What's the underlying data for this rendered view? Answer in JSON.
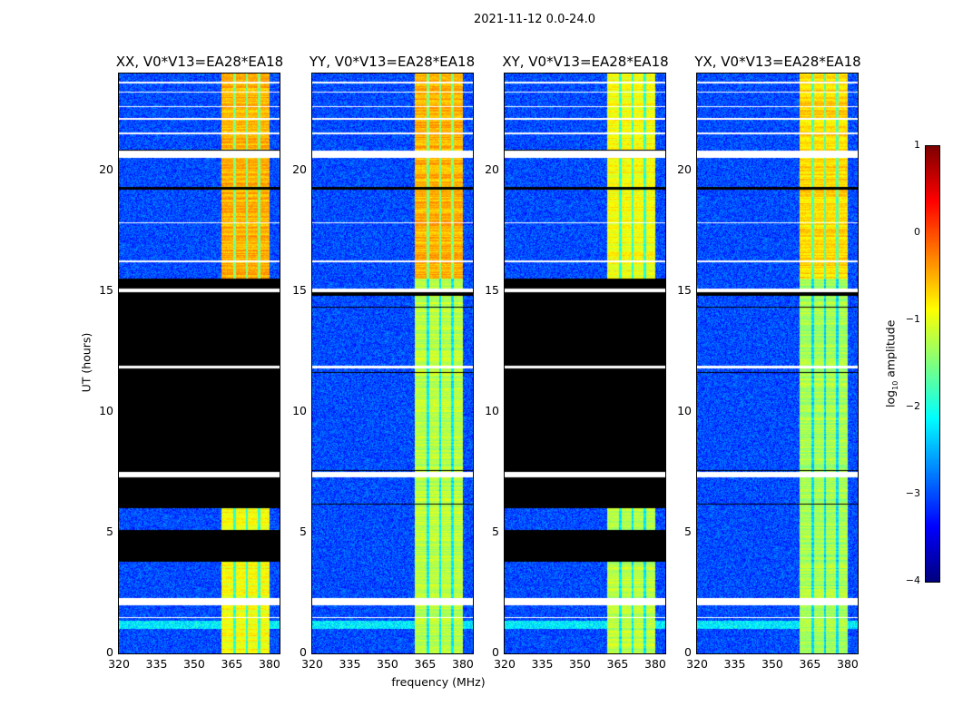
{
  "figure_title": "2021-11-12 0.0-24.0",
  "chart_data": {
    "type": "heatmap",
    "title": "2021-11-12 0.0-24.0",
    "xlabel": "frequency (MHz)",
    "ylabel": "UT (hours)",
    "xlim": [
      320,
      384
    ],
    "ylim": [
      0,
      24
    ],
    "xticks": [
      "320",
      "335",
      "350",
      "365",
      "380"
    ],
    "xtick_values": [
      320,
      335,
      350,
      365,
      380
    ],
    "yticks": [
      "0",
      "5",
      "10",
      "15",
      "20"
    ],
    "ytick_values": [
      0,
      5,
      10,
      15,
      20
    ],
    "colorbar": {
      "label_main": "log",
      "label_sub": "10",
      "label_rest": " amplitude",
      "range": [
        -4,
        1
      ],
      "ticks": [
        "1",
        "0",
        "−1",
        "−2",
        "−3",
        "−4"
      ],
      "tick_values": [
        1,
        0,
        -1,
        -2,
        -3,
        -4
      ],
      "colormap": "jet"
    },
    "signal_band_mhz": [
      361,
      380
    ],
    "channel_edges_mhz": [
      366,
      371,
      376
    ],
    "background_level": -3.0,
    "panels": [
      {
        "title": "XX, V0*V13=EA28*EA18",
        "flagged_hours": [
          [
            3.8,
            5.1
          ],
          [
            6.0,
            15.5
          ],
          [
            20.8,
            20.85
          ],
          [
            19.2,
            19.3
          ]
        ],
        "band_level_upper": -0.5,
        "band_level_lower": -0.9
      },
      {
        "title": "YY, V0*V13=EA28*EA18",
        "flagged_hours": [
          [
            11.6,
            11.65
          ],
          [
            14.3,
            14.35
          ],
          [
            14.8,
            14.95
          ],
          [
            7.55,
            7.6
          ],
          [
            6.15,
            6.2
          ],
          [
            19.2,
            19.3
          ]
        ],
        "band_level_upper": -0.5,
        "band_level_lower": -1.2
      },
      {
        "title": "XY, V0*V13=EA28*EA18",
        "flagged_hours": [
          [
            3.8,
            5.1
          ],
          [
            6.0,
            15.5
          ],
          [
            20.8,
            20.85
          ],
          [
            19.2,
            19.3
          ]
        ],
        "band_level_upper": -0.9,
        "band_level_lower": -1.2
      },
      {
        "title": "YX, V0*V13=EA28*EA18",
        "flagged_hours": [
          [
            11.6,
            11.65
          ],
          [
            14.3,
            14.35
          ],
          [
            14.8,
            14.95
          ],
          [
            7.55,
            7.6
          ],
          [
            6.15,
            6.2
          ],
          [
            19.2,
            19.3
          ]
        ],
        "band_level_upper": -0.7,
        "band_level_lower": -1.3
      }
    ],
    "blank_hours": [
      [
        1.45,
        1.5
      ],
      [
        2.0,
        2.3
      ],
      [
        7.3,
        7.5
      ],
      [
        11.8,
        11.9
      ],
      [
        14.95,
        15.1
      ],
      [
        20.5,
        20.8
      ],
      [
        21.5,
        21.55
      ],
      [
        22.1,
        22.15
      ],
      [
        22.6,
        22.65
      ],
      [
        23.2,
        23.25
      ],
      [
        23.6,
        23.65
      ],
      [
        17.8,
        17.85
      ],
      [
        16.2,
        16.25
      ]
    ]
  }
}
